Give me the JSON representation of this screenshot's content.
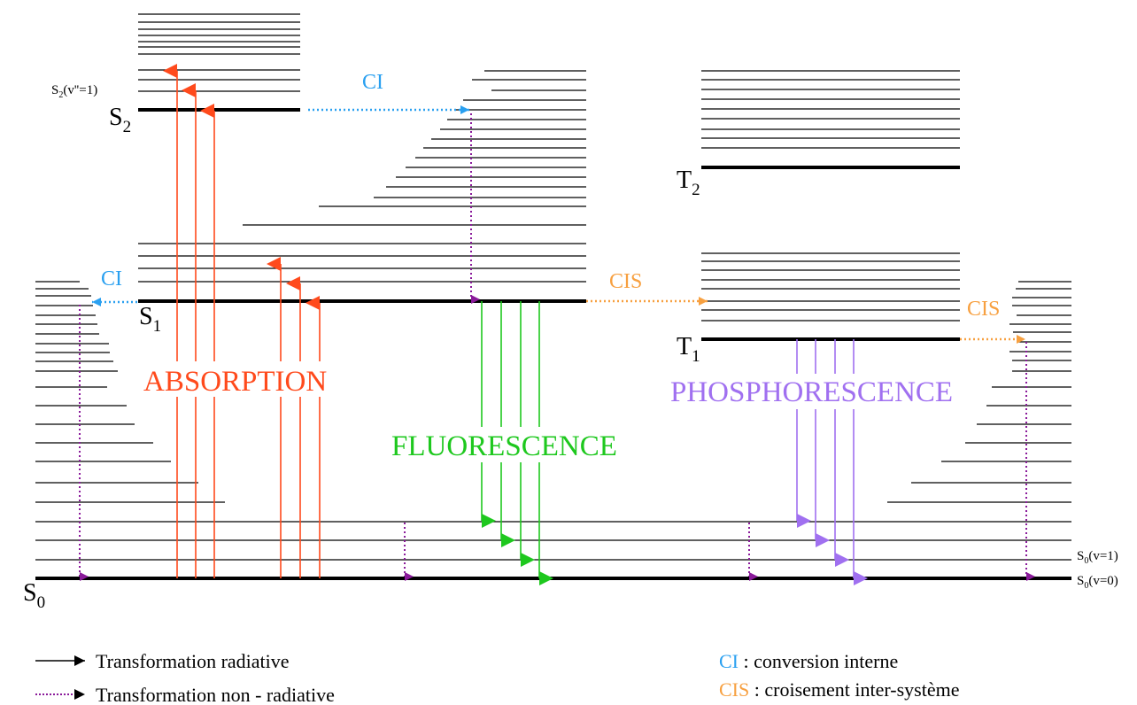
{
  "levels": {
    "s0": "S",
    "s0_sub": "0",
    "s1": "S",
    "s1_sub": "1",
    "s2": "S",
    "s2_sub": "2",
    "t1": "T",
    "t1_sub": "1",
    "t2": "T",
    "t2_sub": "2",
    "s2_v1_main": "S",
    "s2_v1_sub": "2",
    "s2_v1_rest": "(v''=1)",
    "s0_v1_main": "S",
    "s0_v1_sub": "0",
    "s0_v1_rest": "(v=1)",
    "s0_v0_main": "S",
    "s0_v0_sub": "0",
    "s0_v0_rest": "(v=0)"
  },
  "processes": {
    "absorption": "ABSORPTION",
    "fluorescence": "FLUORESCENCE",
    "phosphorescence": "PHOSPHORESCENCE",
    "ci": "CI",
    "cis": "CIS"
  },
  "legend": {
    "radiative": "Transformation radiative",
    "non_radiative": "Transformation non - radiative",
    "ci_abbr": "CI",
    "ci_desc": " : conversion interne",
    "cis_abbr": "CIS",
    "cis_desc": " : croisement inter-système"
  },
  "colors": {
    "absorption": "#ff4a1c",
    "fluorescence": "#1ec81e",
    "phosphorescence": "#a070f0",
    "ci": "#2aa0f0",
    "cis": "#f7a040",
    "non_radiative": "#8a1a9a",
    "level": "#000000"
  }
}
